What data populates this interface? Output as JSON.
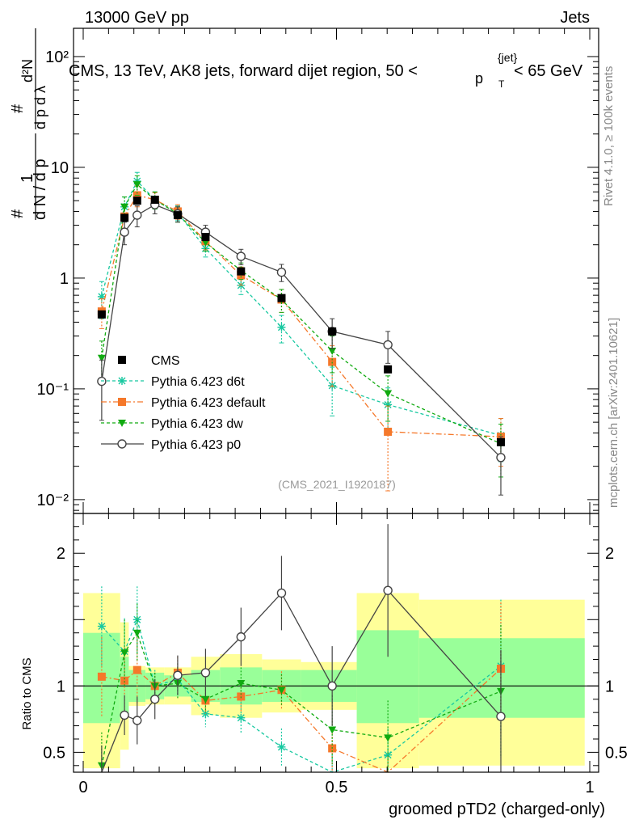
{
  "header": {
    "left": "13000 GeV pp",
    "right": "Jets"
  },
  "title": {
    "main": "CMS, 13 TeV, AK8 jets, forward dijet region, 50 <",
    "p": "p",
    "sup": "{jet}",
    "sub": "T",
    "tail": "< 65 GeV"
  },
  "side_text": {
    "rivet": "Rivet 4.1.0, ≥ 100k events",
    "mcplots": "mcplots.cern.ch [arXiv:2401.10621]"
  },
  "analysis_label": "(CMS_2021_I1920187)",
  "colors": {
    "CMS": "#000000",
    "d6t": "#17c8a0",
    "default": "#f5782a",
    "dw": "#10aa10",
    "p0": "#444444",
    "band_inner": "#99ff99",
    "band_outer": "#ffff99"
  },
  "chart_data": [
    {
      "type": "scatter",
      "panel": "main",
      "yscale": "log",
      "xlim": [
        0,
        1
      ],
      "ylim": [
        0.0075,
        180
      ],
      "ylabel": "1/dN/dpT # d²N/(dpT dλ)",
      "y_tick_labels": [
        "10⁻²",
        "10⁻¹",
        "1",
        "10",
        "10²"
      ],
      "y_tick_values": [
        0.01,
        0.1,
        1,
        10,
        100
      ],
      "series": [
        {
          "name": "CMS",
          "key": "CMS",
          "style": "square",
          "x": [
            0.0365,
            0.0815,
            0.1065,
            0.1415,
            0.1865,
            0.2415,
            0.3115,
            0.3915,
            0.4915,
            0.6015,
            0.8245
          ],
          "y": [
            0.47,
            3.5,
            5.0,
            5.1,
            3.7,
            2.35,
            1.15,
            0.66,
            0.33,
            0.15,
            0.033
          ]
        },
        {
          "name": "Pythia 6.423 d6t",
          "key": "d6t",
          "style": "star",
          "x": [
            0.0365,
            0.0815,
            0.1065,
            0.1415,
            0.1865,
            0.2415,
            0.3115,
            0.3915,
            0.4915,
            0.6015,
            0.8245
          ],
          "y": [
            0.68,
            4.4,
            7.5,
            5.1,
            3.9,
            1.85,
            0.86,
            0.36,
            0.107,
            0.072,
            0.038
          ],
          "err": [
            0.25,
            1.0,
            1.5,
            0.9,
            0.6,
            0.3,
            0.15,
            0.1,
            0.05,
            0.03,
            0.016
          ]
        },
        {
          "name": "Pythia 6.423 default",
          "key": "default",
          "style": "square",
          "x": [
            0.0365,
            0.0815,
            0.1065,
            0.1415,
            0.1865,
            0.2415,
            0.3115,
            0.3915,
            0.4915,
            0.6015,
            0.8245
          ],
          "y": [
            0.5,
            3.6,
            5.6,
            5.1,
            4.0,
            2.15,
            1.06,
            0.64,
            0.175,
            0.041,
            0.037
          ],
          "err": [
            0.15,
            0.8,
            1.2,
            0.8,
            0.6,
            0.35,
            0.2,
            0.15,
            0.07,
            0.029,
            0.017
          ]
        },
        {
          "name": "Pythia 6.423 dw",
          "key": "dw",
          "style": "triangle",
          "x": [
            0.0365,
            0.0815,
            0.1065,
            0.1415,
            0.1865,
            0.2415,
            0.3115,
            0.3915,
            0.4915,
            0.6015,
            0.8245
          ],
          "y": [
            0.19,
            4.4,
            7.0,
            5.1,
            3.8,
            2.1,
            1.17,
            0.64,
            0.22,
            0.091,
            0.032
          ],
          "err": [
            0.08,
            1.0,
            1.4,
            0.9,
            0.6,
            0.35,
            0.2,
            0.15,
            0.08,
            0.04,
            0.016
          ]
        },
        {
          "name": "Pythia 6.423 p0",
          "key": "p0",
          "style": "circle",
          "x": [
            0.0365,
            0.0815,
            0.1065,
            0.1415,
            0.1865,
            0.2415,
            0.3115,
            0.3915,
            0.4915,
            0.6015,
            0.8245
          ],
          "y": [
            0.117,
            2.6,
            3.7,
            4.6,
            3.8,
            2.6,
            1.57,
            1.13,
            0.33,
            0.25,
            0.024
          ],
          "err": [
            0.065,
            0.6,
            0.8,
            0.8,
            0.6,
            0.4,
            0.25,
            0.2,
            0.1,
            0.08,
            0.013
          ]
        }
      ]
    },
    {
      "type": "line",
      "panel": "ratio",
      "ylabel": "Ratio to CMS",
      "xlabel": "groomed pTD2 (charged-only)",
      "xlim": [
        0,
        1
      ],
      "ylim": [
        0.35,
        2.3
      ],
      "x_tick_labels": [
        "0",
        "0.5",
        "1"
      ],
      "x_tick_values": [
        0,
        0.5,
        1
      ],
      "y_tick_labels": [
        "0.5",
        "1",
        "2"
      ],
      "y_tick_values": [
        0.5,
        1,
        2
      ],
      "bands": {
        "edges": [
          0,
          0.073,
          0.09,
          0.123,
          0.16,
          0.213,
          0.27,
          0.353,
          0.43,
          0.54,
          0.663,
          0.99
        ],
        "inner_lo": [
          0.72,
          0.78,
          0.88,
          0.9,
          0.92,
          0.88,
          0.86,
          0.88,
          0.88,
          0.72,
          0.76
        ],
        "inner_hi": [
          1.4,
          1.22,
          1.12,
          1.1,
          1.08,
          1.12,
          1.14,
          1.12,
          1.12,
          1.42,
          1.36
        ],
        "outer_lo": [
          0.38,
          0.52,
          0.85,
          0.86,
          0.86,
          0.78,
          0.76,
          0.8,
          0.82,
          0.38,
          0.4
        ],
        "outer_hi": [
          1.7,
          1.48,
          1.15,
          1.14,
          1.14,
          1.22,
          1.24,
          1.2,
          1.18,
          1.7,
          1.65
        ]
      },
      "series": [
        {
          "key": "d6t",
          "y": [
            1.45,
            1.26,
            1.5,
            1.0,
            1.05,
            0.79,
            0.76,
            0.54,
            0.32,
            0.48,
            1.15
          ],
          "err": [
            0.3,
            0.25,
            0.25,
            0.12,
            0.12,
            0.1,
            0.12,
            0.14,
            0.16,
            0.2,
            0.5
          ]
        },
        {
          "key": "default",
          "y": [
            1.07,
            1.04,
            1.12,
            1.0,
            1.1,
            0.89,
            0.92,
            0.97,
            0.53,
            0.27,
            1.13
          ],
          "err": [
            0.3,
            0.25,
            0.25,
            0.1,
            0.12,
            0.1,
            0.12,
            0.14,
            0.21,
            0.2,
            0.5
          ]
        },
        {
          "key": "dw",
          "y": [
            0.4,
            1.25,
            1.4,
            1.0,
            1.02,
            0.9,
            1.02,
            0.97,
            0.67,
            0.61,
            0.96
          ],
          "err": [
            0.25,
            0.25,
            0.22,
            0.1,
            0.12,
            0.1,
            0.12,
            0.12,
            0.26,
            0.28,
            0.5
          ]
        },
        {
          "key": "p0",
          "y": [
            0.3,
            0.78,
            0.74,
            0.9,
            1.08,
            1.1,
            1.37,
            1.7,
            1.0,
            1.72,
            0.77
          ],
          "err": [
            0.25,
            0.15,
            0.18,
            0.15,
            0.15,
            0.18,
            0.22,
            0.28,
            0.3,
            0.5,
            0.5
          ]
        }
      ]
    }
  ]
}
